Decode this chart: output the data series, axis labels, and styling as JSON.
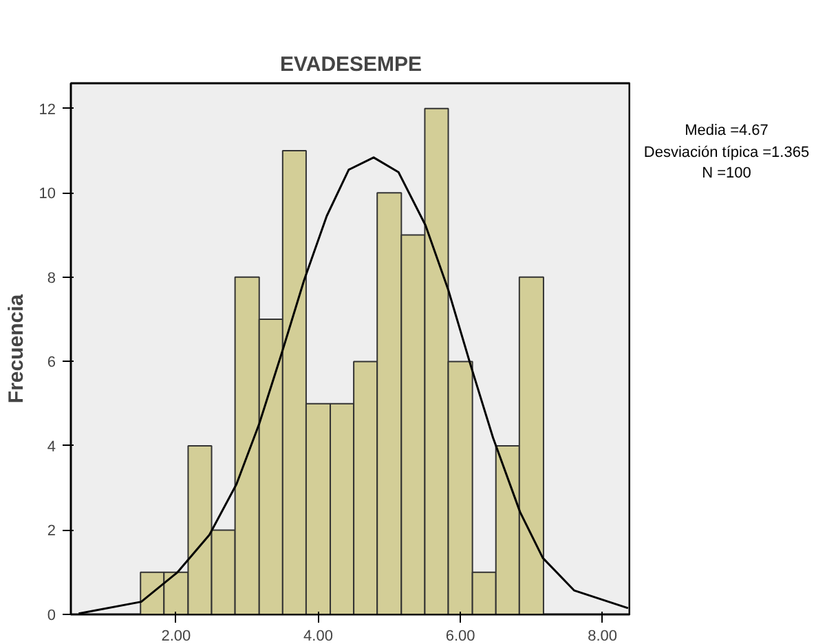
{
  "chart_data": {
    "type": "histogram",
    "title": "EVADESEMPE",
    "ylabel": "Frecuencia",
    "bins": [
      1.5,
      1.83,
      2.17,
      2.5,
      2.83,
      3.17,
      3.5,
      3.83,
      4.17,
      4.5,
      4.83,
      5.17,
      5.5,
      5.83,
      6.17,
      6.5,
      6.83,
      7.17
    ],
    "values": [
      1,
      1,
      4,
      2,
      8,
      7,
      11,
      5,
      5,
      6,
      10,
      9,
      12,
      6,
      1,
      4,
      8
    ],
    "color": "#d3ce97",
    "series": [
      {
        "type": "line",
        "color": "#000000",
        "x": [
          0.63,
          1.51,
          2.02,
          2.47,
          2.85,
          3.17,
          3.48,
          3.8,
          4.12,
          4.43,
          4.78,
          5.13,
          5.51,
          5.83,
          6.14,
          6.46,
          6.84,
          7.16,
          7.6,
          8.36
        ],
        "values": [
          0.02,
          0.3,
          1.0,
          1.89,
          3.09,
          4.52,
          6.16,
          7.92,
          9.45,
          10.55,
          10.84,
          10.49,
          9.23,
          7.7,
          5.94,
          4.19,
          2.43,
          1.34,
          0.57,
          0.15
        ]
      }
    ],
    "xlim": [
      0.52,
      8.4
    ],
    "ylim": [
      0,
      12.6
    ],
    "xticks": [
      {
        "value": 2,
        "label": "2.00"
      },
      {
        "value": 4,
        "label": "4.00"
      },
      {
        "value": 6,
        "label": "6.00"
      },
      {
        "value": 8,
        "label": "8.00"
      }
    ],
    "yticks": [
      0,
      2,
      4,
      6,
      8,
      10,
      12
    ],
    "grid": false,
    "annotations": [
      "Media =4.67",
      "Desviación típica =1.365",
      "N =100"
    ]
  }
}
